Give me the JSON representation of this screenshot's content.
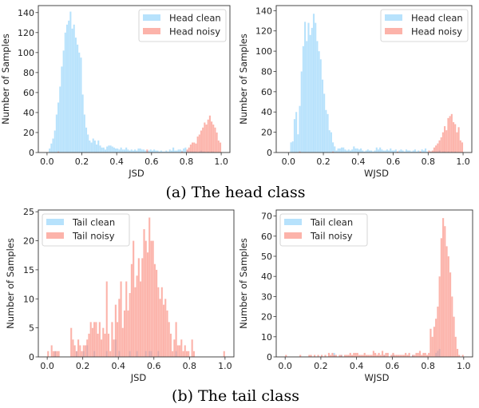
{
  "captions": {
    "a": "(a) The head class",
    "b": "(b) The tail class"
  },
  "colors": {
    "clean": "#87cefa",
    "noisy": "#fa8072"
  },
  "chart_data": [
    {
      "type": "bar",
      "subtype": "histogram",
      "panel": "a",
      "xlabel": "JSD",
      "ylabel": "Number of Samples",
      "xlim": [
        -0.05,
        1.05
      ],
      "ylim": [
        0,
        147
      ],
      "xticks": [
        "0.0",
        "0.2",
        "0.4",
        "0.6",
        "0.8",
        "1.0"
      ],
      "yticks": [
        "0",
        "20",
        "40",
        "60",
        "80",
        "100",
        "120",
        "140"
      ],
      "bin_width": 0.01,
      "legend": "top-right",
      "grid": false,
      "series": [
        {
          "name": "Head clean",
          "color": "#87cefa",
          "values": [
            0,
            4,
            9,
            14,
            22,
            38,
            50,
            66,
            86,
            102,
            120,
            128,
            132,
            141,
            124,
            128,
            115,
            108,
            100,
            95,
            58,
            38,
            25,
            18,
            12,
            10,
            14,
            12,
            8,
            12,
            7,
            5,
            5,
            3,
            6,
            7,
            7,
            6,
            5,
            4,
            4,
            3,
            5,
            3,
            3,
            5,
            3,
            2,
            3,
            2,
            3,
            2,
            4,
            4,
            3,
            3,
            2,
            2,
            2,
            3,
            2,
            3,
            2,
            2,
            1,
            2,
            1,
            1,
            2,
            1,
            3,
            2,
            5,
            2,
            2,
            3,
            3,
            2,
            4,
            5,
            2,
            1,
            1,
            1,
            1,
            1,
            0,
            1,
            2,
            1,
            1,
            0,
            1,
            0,
            1,
            1,
            0,
            0,
            0,
            0
          ]
        },
        {
          "name": "Head noisy",
          "color": "#fa8072",
          "values": [
            0,
            0,
            0,
            0,
            0,
            0,
            1,
            0,
            0,
            0,
            0,
            0,
            0,
            0,
            0,
            0,
            0,
            0,
            0,
            0,
            0,
            0,
            0,
            0,
            0,
            0,
            0,
            0,
            0,
            0,
            0,
            0,
            0,
            0,
            0,
            0,
            0,
            0,
            0,
            0,
            0,
            0,
            0,
            0,
            0,
            0,
            0,
            0,
            0,
            0,
            0,
            0,
            0,
            0,
            0,
            0,
            0,
            3,
            0,
            0,
            0,
            0,
            0,
            0,
            0,
            0,
            0,
            0,
            0,
            0,
            0,
            0,
            0,
            0,
            0,
            0,
            0,
            1,
            0,
            0,
            3,
            5,
            8,
            10,
            10,
            9,
            16,
            18,
            22,
            25,
            30,
            28,
            33,
            37,
            31,
            28,
            25,
            20,
            12,
            10
          ]
        }
      ]
    },
    {
      "type": "bar",
      "subtype": "histogram",
      "panel": "a",
      "xlabel": "WJSD",
      "ylabel": "Number of Samples",
      "xlim": [
        -0.07,
        1.05
      ],
      "ylim": [
        0,
        145
      ],
      "xticks": [
        "0.0",
        "0.2",
        "0.4",
        "0.6",
        "0.8",
        "1.0"
      ],
      "yticks": [
        "0",
        "20",
        "40",
        "60",
        "80",
        "100",
        "120",
        "140"
      ],
      "bin_width": 0.01,
      "legend": "top-right",
      "grid": false,
      "series": [
        {
          "name": "Head clean",
          "color": "#87cefa",
          "values": [
            0,
            10,
            11,
            33,
            40,
            18,
            46,
            80,
            105,
            129,
            110,
            128,
            116,
            123,
            137,
            128,
            110,
            100,
            92,
            72,
            58,
            42,
            38,
            22,
            20,
            10,
            6,
            2,
            4,
            4,
            5,
            5,
            3,
            2,
            3,
            2,
            3,
            6,
            4,
            4,
            3,
            4,
            2,
            1,
            2,
            3,
            2,
            2,
            1,
            2,
            5,
            3,
            5,
            3,
            2,
            2,
            3,
            2,
            4,
            2,
            2,
            3,
            1,
            2,
            3,
            2,
            1,
            3,
            2,
            2,
            1,
            2,
            3,
            1,
            2,
            1,
            3,
            2,
            4,
            1,
            0,
            1,
            1,
            1,
            1,
            1,
            2,
            0,
            1,
            1,
            0,
            1,
            0,
            1,
            0,
            1,
            0,
            0,
            0,
            0
          ]
        },
        {
          "name": "Head noisy",
          "color": "#fa8072",
          "values": [
            0,
            0,
            0,
            0,
            0,
            0,
            1,
            0,
            0,
            0,
            0,
            0,
            0,
            0,
            0,
            0,
            0,
            0,
            0,
            0,
            0,
            0,
            0,
            0,
            0,
            1,
            0,
            0,
            0,
            0,
            0,
            0,
            0,
            0,
            0,
            0,
            0,
            0,
            0,
            0,
            0,
            0,
            0,
            0,
            0,
            0,
            0,
            0,
            0,
            0,
            0,
            0,
            0,
            0,
            0,
            0,
            0,
            0,
            0,
            0,
            0,
            0,
            1,
            0,
            0,
            0,
            0,
            0,
            0,
            0,
            0,
            0,
            0,
            0,
            0,
            1,
            0,
            0,
            0,
            0,
            2,
            1,
            2,
            5,
            7,
            9,
            12,
            15,
            20,
            26,
            22,
            34,
            36,
            38,
            30,
            28,
            20,
            25,
            12,
            10
          ]
        }
      ]
    },
    {
      "type": "bar",
      "subtype": "histogram",
      "panel": "b",
      "xlabel": "JSD",
      "ylabel": "Number of Samples",
      "xlim": [
        -0.05,
        1.05
      ],
      "ylim": [
        0,
        25.3
      ],
      "xticks": [
        "0.0",
        "0.2",
        "0.4",
        "0.6",
        "0.8",
        "1.0"
      ],
      "yticks": [
        "0",
        "5",
        "10",
        "15",
        "20",
        "25"
      ],
      "bin_width": 0.01,
      "legend": "top-left",
      "grid": false,
      "series": [
        {
          "name": "Tail clean",
          "color": "#87cefa",
          "values": [
            0,
            0,
            0,
            0,
            1,
            0,
            0,
            0,
            0,
            0,
            0,
            0,
            0,
            0,
            0,
            0,
            1,
            0,
            0,
            0,
            1,
            0,
            2,
            0,
            0,
            0,
            1,
            0,
            0,
            0,
            0,
            0,
            0,
            1,
            0,
            0,
            0,
            0,
            3,
            0,
            1,
            0,
            0,
            0,
            0,
            0,
            1,
            0,
            0,
            0,
            1,
            0,
            0,
            0,
            0,
            1,
            0,
            1,
            1,
            0,
            0,
            0,
            1,
            0,
            0,
            0,
            0,
            0,
            0,
            0,
            0,
            0,
            1,
            0,
            0,
            0,
            0,
            0,
            0,
            0,
            0,
            0,
            0,
            0,
            0,
            0,
            0,
            0,
            0,
            0,
            0,
            0,
            0,
            0,
            0,
            0,
            0,
            0,
            0,
            0
          ]
        },
        {
          "name": "Tail noisy",
          "color": "#fa8072",
          "values": [
            1,
            0,
            2,
            1,
            1,
            1,
            1,
            0,
            0,
            0,
            0,
            0,
            0,
            5,
            3,
            2,
            1,
            3,
            2,
            1,
            2,
            2,
            3,
            4,
            6,
            5,
            6,
            6,
            4,
            6,
            3,
            5,
            4,
            13,
            4,
            1,
            6,
            3,
            9,
            6,
            10,
            13,
            5,
            8,
            13,
            8,
            11,
            16,
            20,
            12,
            14,
            17,
            13,
            17,
            22,
            20,
            18,
            24,
            20,
            20,
            16,
            15,
            12,
            10,
            12,
            9,
            10,
            8,
            6,
            4,
            1,
            3,
            6,
            2,
            2,
            3,
            1,
            2,
            1,
            1,
            0,
            3,
            1,
            0,
            0,
            0,
            0,
            0,
            0,
            0,
            0,
            0,
            0,
            0,
            0,
            0,
            0,
            0,
            0,
            1
          ]
        }
      ]
    },
    {
      "type": "bar",
      "subtype": "histogram",
      "panel": "b",
      "xlabel": "WJSD",
      "ylabel": "Number of Samples",
      "xlim": [
        -0.05,
        1.05
      ],
      "ylim": [
        0,
        73
      ],
      "xticks": [
        "0.0",
        "0.2",
        "0.4",
        "0.6",
        "0.8",
        "1.0"
      ],
      "yticks": [
        "0",
        "10",
        "20",
        "30",
        "40",
        "50",
        "60",
        "70"
      ],
      "bin_width": 0.01,
      "legend": "top-left",
      "grid": false,
      "series": [
        {
          "name": "Tail clean",
          "color": "#87cefa",
          "values": [
            0,
            0,
            0,
            0,
            0,
            0,
            0,
            0,
            0,
            0,
            0,
            0,
            0,
            0,
            0,
            0,
            0,
            0,
            0,
            0,
            0,
            0,
            0,
            0,
            0,
            0,
            0,
            2,
            0,
            0,
            0,
            1,
            0,
            0,
            0,
            0,
            0,
            0,
            0,
            0,
            0,
            0,
            0,
            0,
            0,
            0,
            0,
            0,
            0,
            0,
            0,
            0,
            0,
            0,
            0,
            1,
            0,
            0,
            0,
            0,
            1,
            0,
            0,
            0,
            0,
            0,
            0,
            0,
            0,
            0,
            0,
            1,
            0,
            0,
            0,
            0,
            0,
            0,
            0,
            0,
            0,
            0,
            0,
            0,
            2,
            3,
            4,
            0,
            0,
            0,
            0,
            0,
            0,
            0,
            0,
            0,
            0,
            0,
            0,
            0
          ]
        },
        {
          "name": "Tail noisy",
          "color": "#fa8072",
          "values": [
            1,
            0,
            0,
            0,
            0,
            0,
            0,
            0,
            1,
            0,
            0,
            0,
            0,
            1,
            1,
            0,
            1,
            0,
            1,
            0,
            1,
            0,
            1,
            0,
            2,
            1,
            2,
            1,
            1,
            0,
            1,
            1,
            0,
            1,
            1,
            1,
            2,
            1,
            2,
            2,
            2,
            1,
            1,
            1,
            2,
            1,
            1,
            1,
            1,
            3,
            2,
            1,
            2,
            1,
            3,
            1,
            2,
            2,
            0,
            1,
            2,
            1,
            1,
            1,
            1,
            1,
            1,
            2,
            1,
            2,
            0,
            1,
            1,
            2,
            2,
            3,
            1,
            2,
            2,
            1,
            2,
            14,
            10,
            15,
            19,
            25,
            40,
            59,
            69,
            65,
            55,
            50,
            42,
            30,
            20,
            10,
            4,
            1,
            0,
            1
          ]
        }
      ]
    }
  ]
}
